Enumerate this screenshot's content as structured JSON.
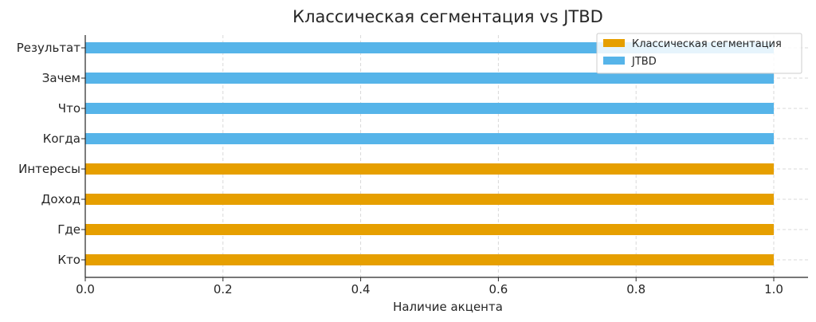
{
  "chart_data": {
    "type": "bar",
    "orientation": "horizontal",
    "title": "Классическая сегментация vs JTBD",
    "xlabel": "Наличие акцента",
    "ylabel": "",
    "categories": [
      "Кто",
      "Где",
      "Доход",
      "Интересы",
      "Когда",
      "Что",
      "Зачем",
      "Результат"
    ],
    "xlim": [
      0,
      1.0
    ],
    "xticks": [
      "0.0",
      "0.2",
      "0.4",
      "0.6",
      "0.8",
      "1.0"
    ],
    "grid": true,
    "legend_position": "top-right",
    "series": [
      {
        "name": "Классическая сегментация",
        "color": "#E69F00",
        "values": [
          1,
          1,
          1,
          1,
          0,
          0,
          0,
          0
        ]
      },
      {
        "name": "JTBD",
        "color": "#56B4E9",
        "values": [
          0,
          0,
          0,
          0,
          1,
          1,
          1,
          1
        ]
      }
    ]
  }
}
